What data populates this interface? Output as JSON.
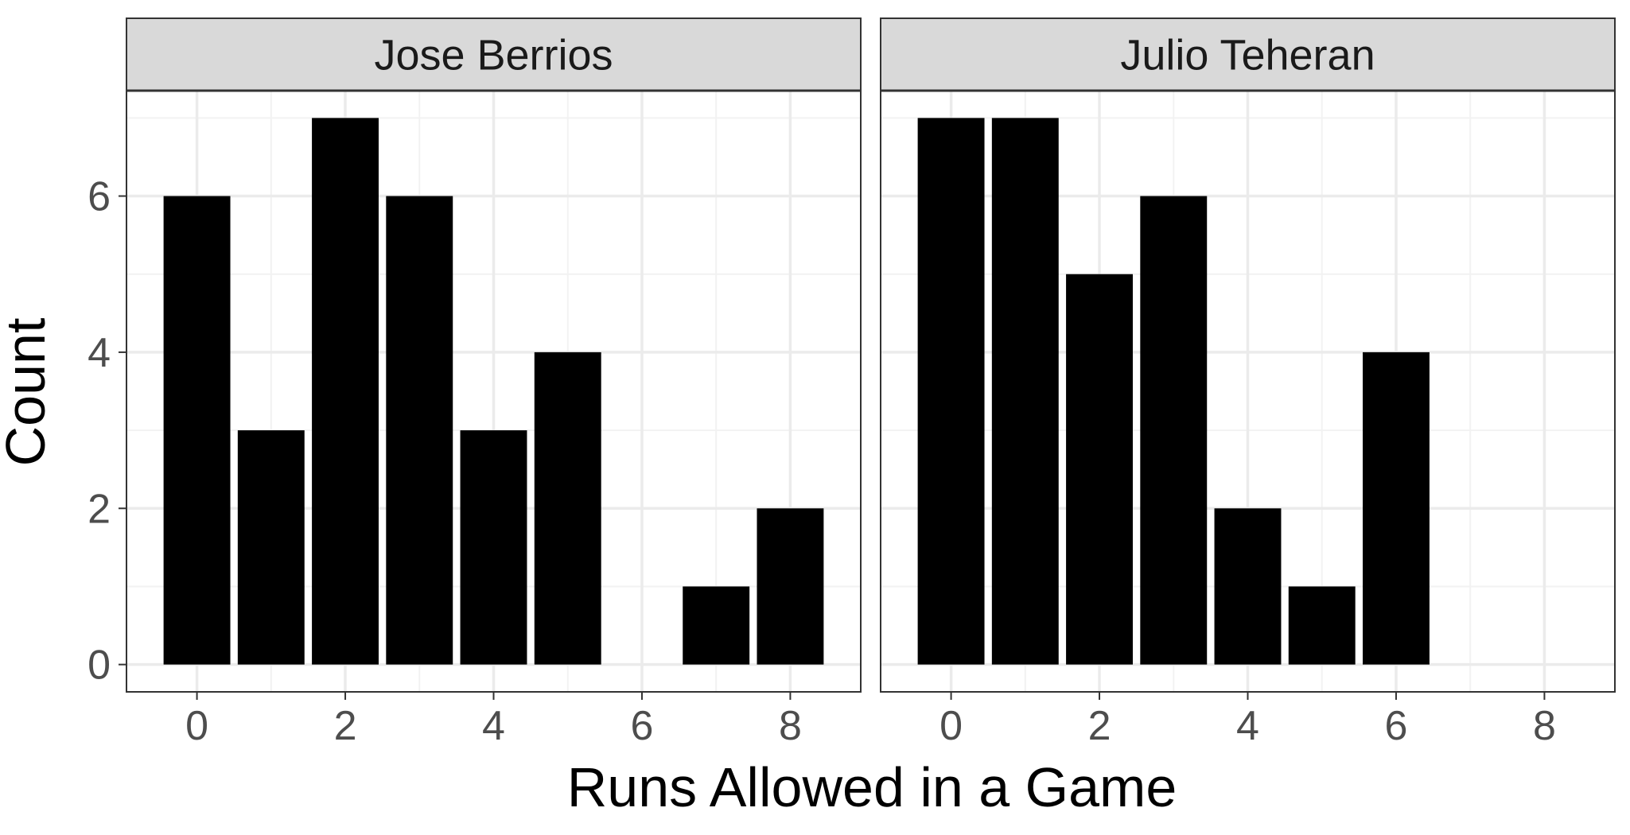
{
  "chart_data": {
    "type": "bar",
    "xlabel": "Runs Allowed in a Game",
    "ylabel": "Count",
    "xlim": [
      -0.95,
      8.95
    ],
    "ylim": [
      -0.35,
      7.35
    ],
    "xticks": [
      0,
      2,
      4,
      6,
      8
    ],
    "yticks": [
      0,
      2,
      4,
      6
    ],
    "grid": true,
    "bar_color": "#000000",
    "panels": [
      {
        "name": "Jose Berrios",
        "x": [
          0,
          1,
          2,
          3,
          4,
          5,
          7,
          8
        ],
        "values": [
          6,
          3,
          7,
          6,
          3,
          4,
          1,
          2
        ]
      },
      {
        "name": "Julio Teheran",
        "x": [
          0,
          1,
          2,
          3,
          4,
          5,
          6
        ],
        "values": [
          7,
          7,
          5,
          6,
          2,
          1,
          4
        ]
      }
    ]
  },
  "colors": {
    "strip_fill": "#d9d9d9",
    "grid_major": "#ebebeb",
    "grid_minor": "#f2f2f2",
    "panel_border": "#333333",
    "bar": "#000000"
  }
}
